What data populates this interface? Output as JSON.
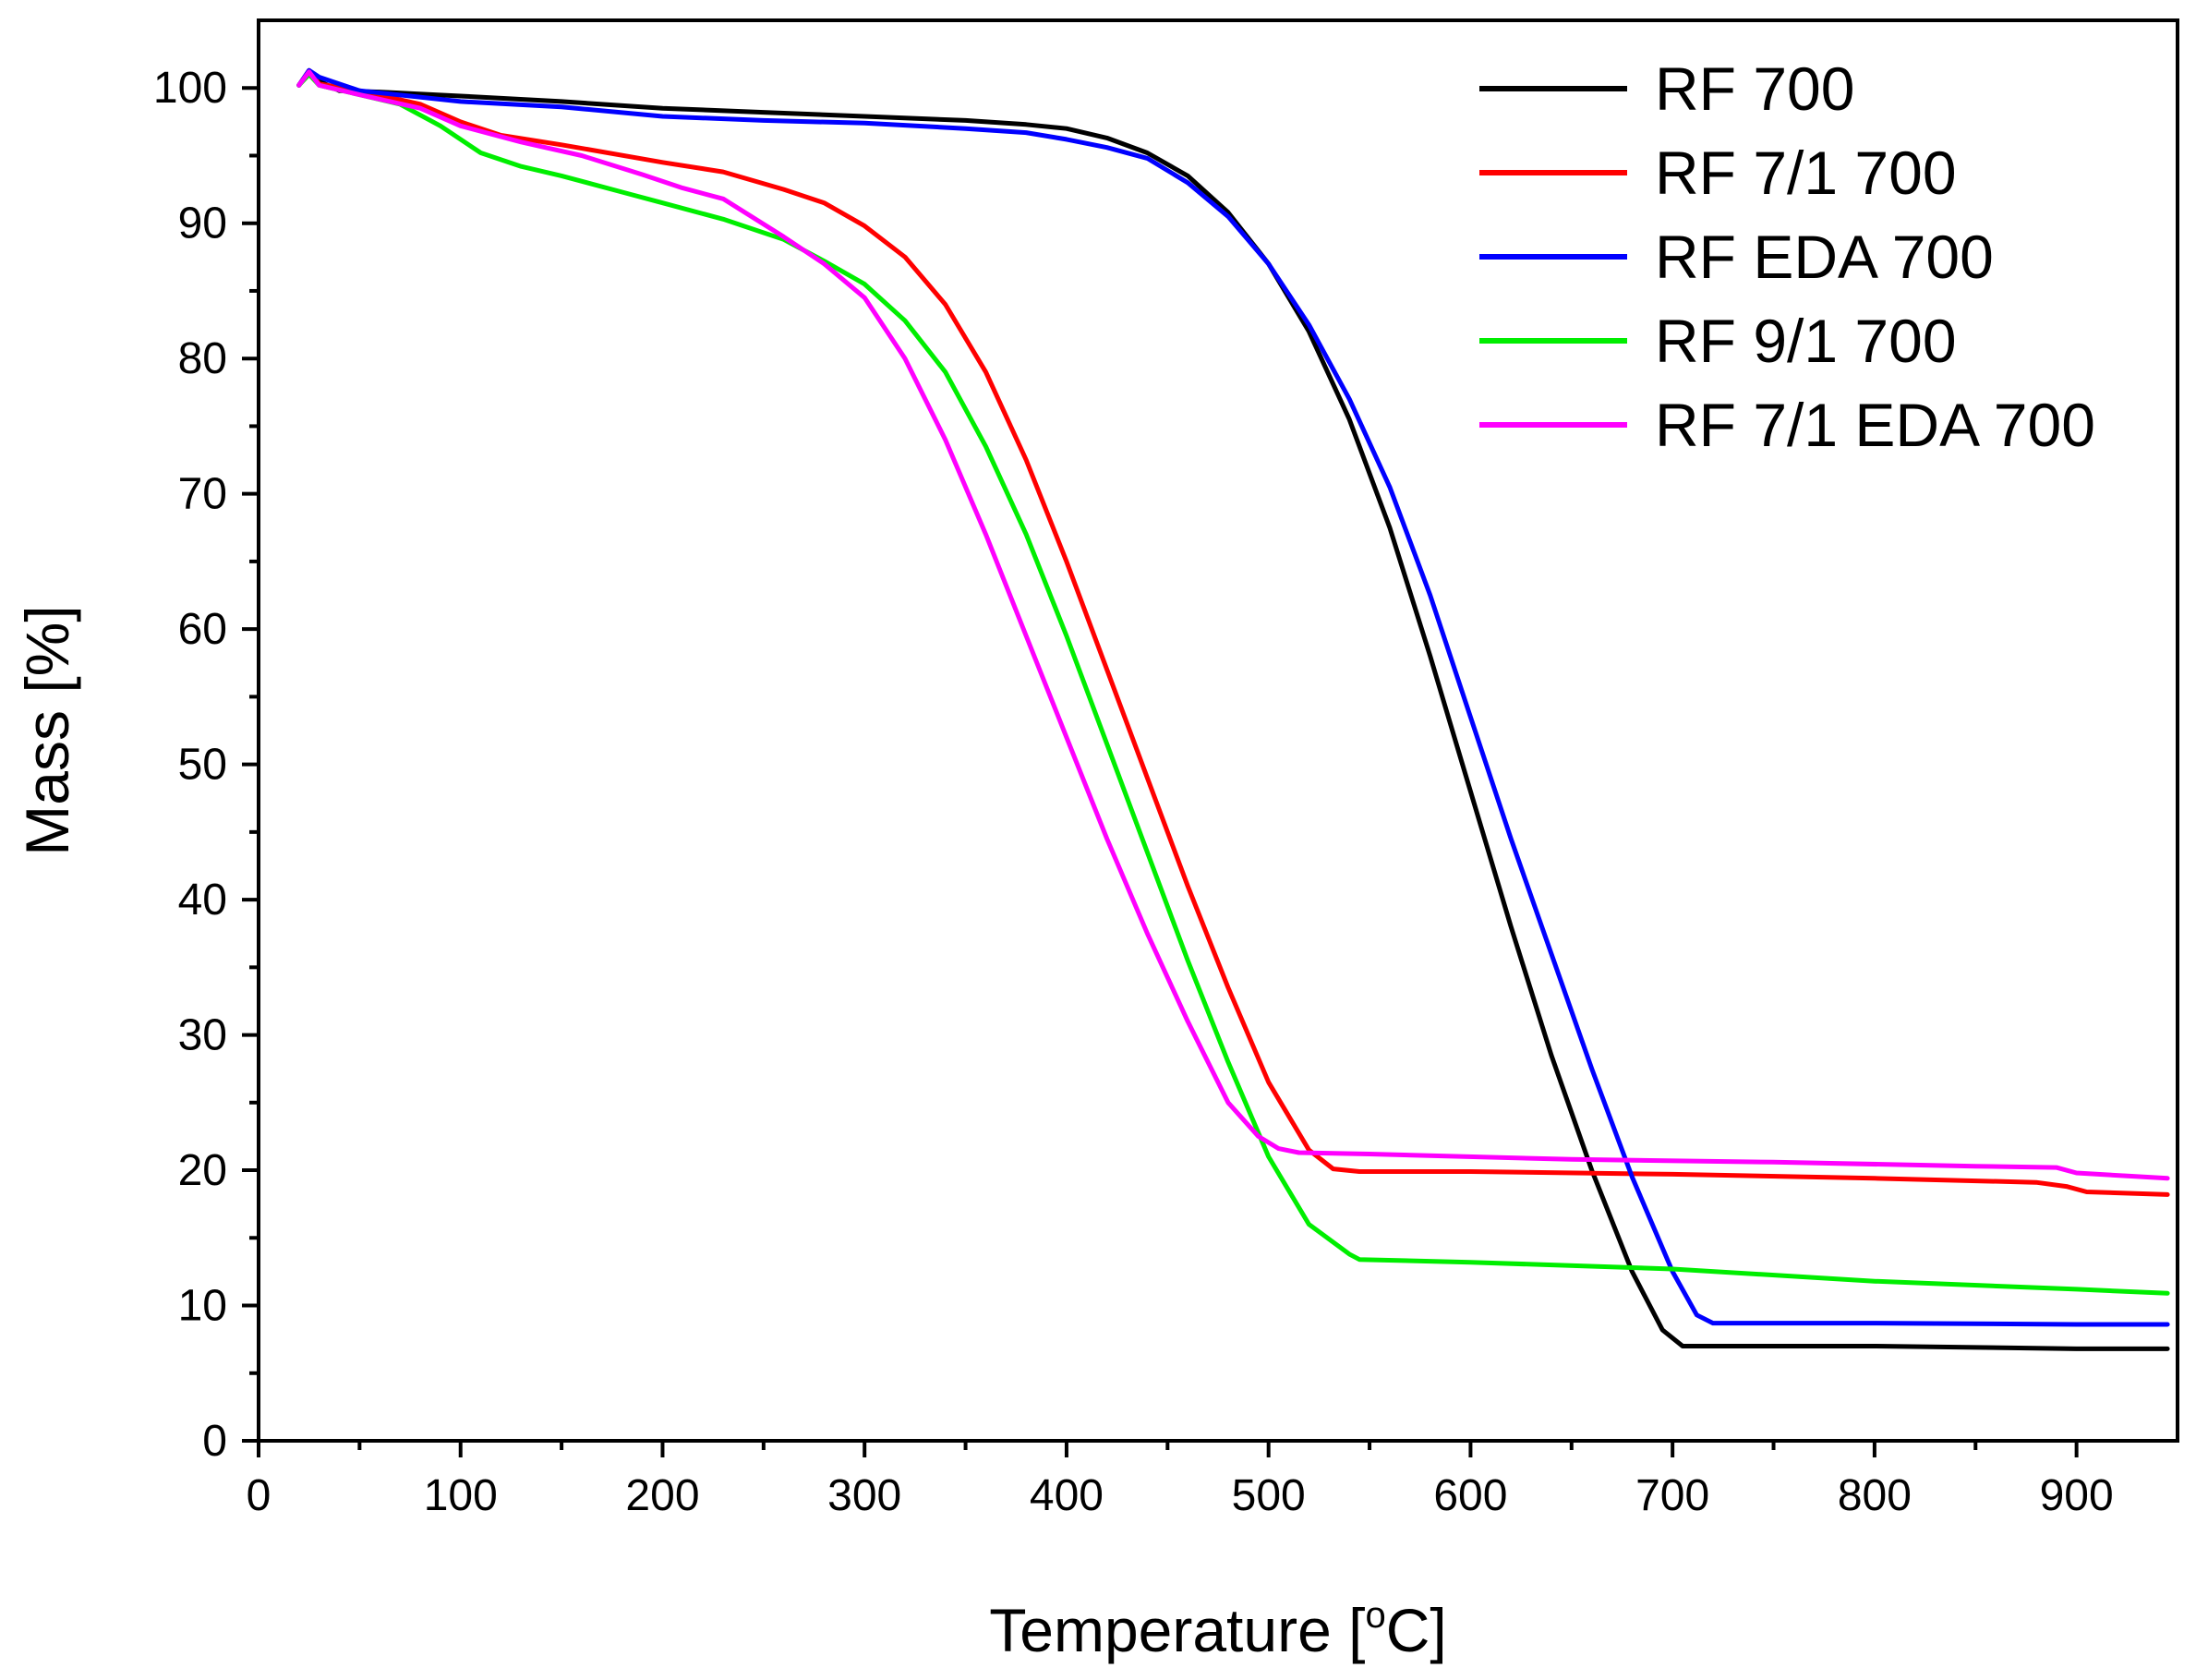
{
  "chart_data": {
    "type": "line",
    "title": "",
    "xlabel": "Temperature",
    "xlabel_unit_prefix": "[",
    "xlabel_unit_sup": "o",
    "xlabel_unit_suffix": "C]",
    "ylabel": "Mass [%]",
    "xlim": [
      0,
      950
    ],
    "ylim": [
      0,
      105
    ],
    "x_major_ticks": [
      0,
      100,
      200,
      300,
      400,
      500,
      600,
      700,
      800,
      900
    ],
    "y_major_ticks": [
      0,
      10,
      20,
      30,
      40,
      50,
      60,
      70,
      80,
      90,
      100
    ],
    "x_tick_labels": [
      "0",
      "100",
      "200",
      "300",
      "400",
      "500",
      "600",
      "700",
      "800",
      "900"
    ],
    "y_tick_labels": [
      "0",
      "10",
      "20",
      "30",
      "40",
      "50",
      "60",
      "70",
      "80",
      "90",
      "100"
    ],
    "grid": false,
    "legend_position": "top-right",
    "series": [
      {
        "name": "RF 700",
        "color": "#000000",
        "points": [
          [
            20,
            100.2
          ],
          [
            25,
            101.2
          ],
          [
            30,
            100.5
          ],
          [
            40,
            99.8
          ],
          [
            60,
            99.7
          ],
          [
            100,
            99.4
          ],
          [
            150,
            99.0
          ],
          [
            200,
            98.5
          ],
          [
            250,
            98.2
          ],
          [
            300,
            97.9
          ],
          [
            350,
            97.6
          ],
          [
            380,
            97.3
          ],
          [
            400,
            97.0
          ],
          [
            420,
            96.3
          ],
          [
            440,
            95.2
          ],
          [
            460,
            93.5
          ],
          [
            480,
            90.8
          ],
          [
            500,
            87.0
          ],
          [
            520,
            82.0
          ],
          [
            540,
            75.5
          ],
          [
            560,
            67.5
          ],
          [
            580,
            58.0
          ],
          [
            600,
            48.0
          ],
          [
            620,
            38.0
          ],
          [
            640,
            28.5
          ],
          [
            660,
            20.0
          ],
          [
            680,
            12.5
          ],
          [
            695,
            8.2
          ],
          [
            705,
            7.0
          ],
          [
            750,
            7.0
          ],
          [
            800,
            7.0
          ],
          [
            850,
            6.9
          ],
          [
            900,
            6.8
          ],
          [
            945,
            6.8
          ]
        ]
      },
      {
        "name": "RF 7/1 700",
        "color": "#ff0000",
        "points": [
          [
            20,
            100.2
          ],
          [
            25,
            101.3
          ],
          [
            30,
            100.3
          ],
          [
            50,
            99.8
          ],
          [
            80,
            98.8
          ],
          [
            100,
            97.5
          ],
          [
            120,
            96.5
          ],
          [
            150,
            95.8
          ],
          [
            200,
            94.5
          ],
          [
            230,
            93.8
          ],
          [
            260,
            92.5
          ],
          [
            280,
            91.5
          ],
          [
            300,
            89.8
          ],
          [
            320,
            87.5
          ],
          [
            340,
            84.0
          ],
          [
            360,
            79.0
          ],
          [
            380,
            72.5
          ],
          [
            400,
            65.0
          ],
          [
            420,
            57.0
          ],
          [
            440,
            49.0
          ],
          [
            460,
            41.0
          ],
          [
            480,
            33.5
          ],
          [
            500,
            26.5
          ],
          [
            520,
            21.5
          ],
          [
            532,
            20.1
          ],
          [
            545,
            19.9
          ],
          [
            600,
            19.9
          ],
          [
            700,
            19.7
          ],
          [
            800,
            19.4
          ],
          [
            880,
            19.1
          ],
          [
            895,
            18.8
          ],
          [
            905,
            18.4
          ],
          [
            945,
            18.2
          ]
        ]
      },
      {
        "name": "RF EDA 700",
        "color": "#0000ff",
        "points": [
          [
            20,
            100.2
          ],
          [
            25,
            101.3
          ],
          [
            30,
            100.8
          ],
          [
            50,
            99.8
          ],
          [
            100,
            99.0
          ],
          [
            150,
            98.6
          ],
          [
            200,
            97.9
          ],
          [
            250,
            97.6
          ],
          [
            300,
            97.4
          ],
          [
            350,
            97.0
          ],
          [
            380,
            96.7
          ],
          [
            400,
            96.2
          ],
          [
            420,
            95.6
          ],
          [
            440,
            94.8
          ],
          [
            460,
            93.0
          ],
          [
            480,
            90.5
          ],
          [
            500,
            87.0
          ],
          [
            520,
            82.5
          ],
          [
            540,
            77.0
          ],
          [
            560,
            70.5
          ],
          [
            580,
            62.5
          ],
          [
            600,
            53.5
          ],
          [
            620,
            44.5
          ],
          [
            640,
            36.0
          ],
          [
            660,
            27.5
          ],
          [
            680,
            19.5
          ],
          [
            700,
            12.5
          ],
          [
            712,
            9.3
          ],
          [
            720,
            8.7
          ],
          [
            800,
            8.7
          ],
          [
            900,
            8.6
          ],
          [
            945,
            8.6
          ]
        ]
      },
      {
        "name": "RF 9/1 700",
        "color": "#00ee00",
        "points": [
          [
            20,
            100.2
          ],
          [
            25,
            101.0
          ],
          [
            30,
            100.2
          ],
          [
            50,
            99.5
          ],
          [
            70,
            98.8
          ],
          [
            90,
            97.2
          ],
          [
            110,
            95.2
          ],
          [
            130,
            94.2
          ],
          [
            150,
            93.5
          ],
          [
            180,
            92.3
          ],
          [
            200,
            91.5
          ],
          [
            230,
            90.3
          ],
          [
            260,
            88.8
          ],
          [
            280,
            87.2
          ],
          [
            300,
            85.5
          ],
          [
            320,
            82.8
          ],
          [
            340,
            79.0
          ],
          [
            360,
            73.5
          ],
          [
            380,
            67.0
          ],
          [
            400,
            59.5
          ],
          [
            420,
            51.5
          ],
          [
            440,
            43.5
          ],
          [
            460,
            35.5
          ],
          [
            480,
            28.0
          ],
          [
            500,
            21.0
          ],
          [
            520,
            16.0
          ],
          [
            540,
            13.8
          ],
          [
            545,
            13.4
          ],
          [
            600,
            13.2
          ],
          [
            700,
            12.7
          ],
          [
            800,
            11.8
          ],
          [
            900,
            11.2
          ],
          [
            945,
            10.9
          ]
        ]
      },
      {
        "name": "RF 7/1 EDA 700",
        "color": "#ff00ff",
        "points": [
          [
            20,
            100.2
          ],
          [
            25,
            101.2
          ],
          [
            30,
            100.2
          ],
          [
            50,
            99.5
          ],
          [
            80,
            98.5
          ],
          [
            100,
            97.2
          ],
          [
            130,
            96.0
          ],
          [
            160,
            95.0
          ],
          [
            190,
            93.6
          ],
          [
            210,
            92.6
          ],
          [
            230,
            91.8
          ],
          [
            260,
            89.0
          ],
          [
            280,
            87.0
          ],
          [
            300,
            84.5
          ],
          [
            320,
            80.0
          ],
          [
            340,
            74.0
          ],
          [
            360,
            67.0
          ],
          [
            380,
            59.5
          ],
          [
            400,
            52.0
          ],
          [
            420,
            44.5
          ],
          [
            440,
            37.5
          ],
          [
            460,
            31.0
          ],
          [
            480,
            25.0
          ],
          [
            495,
            22.5
          ],
          [
            505,
            21.6
          ],
          [
            515,
            21.3
          ],
          [
            550,
            21.2
          ],
          [
            650,
            20.8
          ],
          [
            750,
            20.6
          ],
          [
            850,
            20.3
          ],
          [
            890,
            20.2
          ],
          [
            900,
            19.8
          ],
          [
            945,
            19.4
          ]
        ]
      }
    ]
  }
}
